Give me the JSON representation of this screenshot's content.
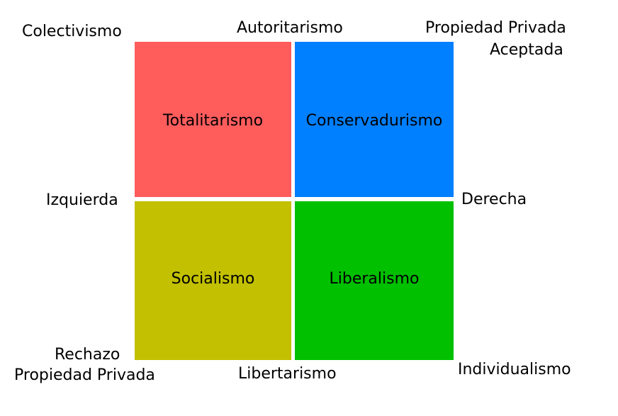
{
  "quadrants": {
    "top_left": {
      "label": "Totalitarismo",
      "color": "#ff5c5c"
    },
    "top_right": {
      "label": "Conservadurismo",
      "color": "#007fff"
    },
    "bottom_left": {
      "label": "Socialismo",
      "color": "#c2c000"
    },
    "bottom_right": {
      "label": "Liberalismo",
      "color": "#00c000"
    }
  },
  "axes": {
    "top": "Autoritarismo",
    "bottom": "Libertarismo",
    "left": "Izquierda",
    "right": "Derecha"
  },
  "corners": {
    "top_left": "Colectivismo",
    "top_right_line1": "Propiedad Privada",
    "top_right_line2": "Aceptada",
    "bottom_left_line1": "Rechazo",
    "bottom_left_line2": "Propiedad Privada",
    "bottom_right": "Individualismo"
  }
}
